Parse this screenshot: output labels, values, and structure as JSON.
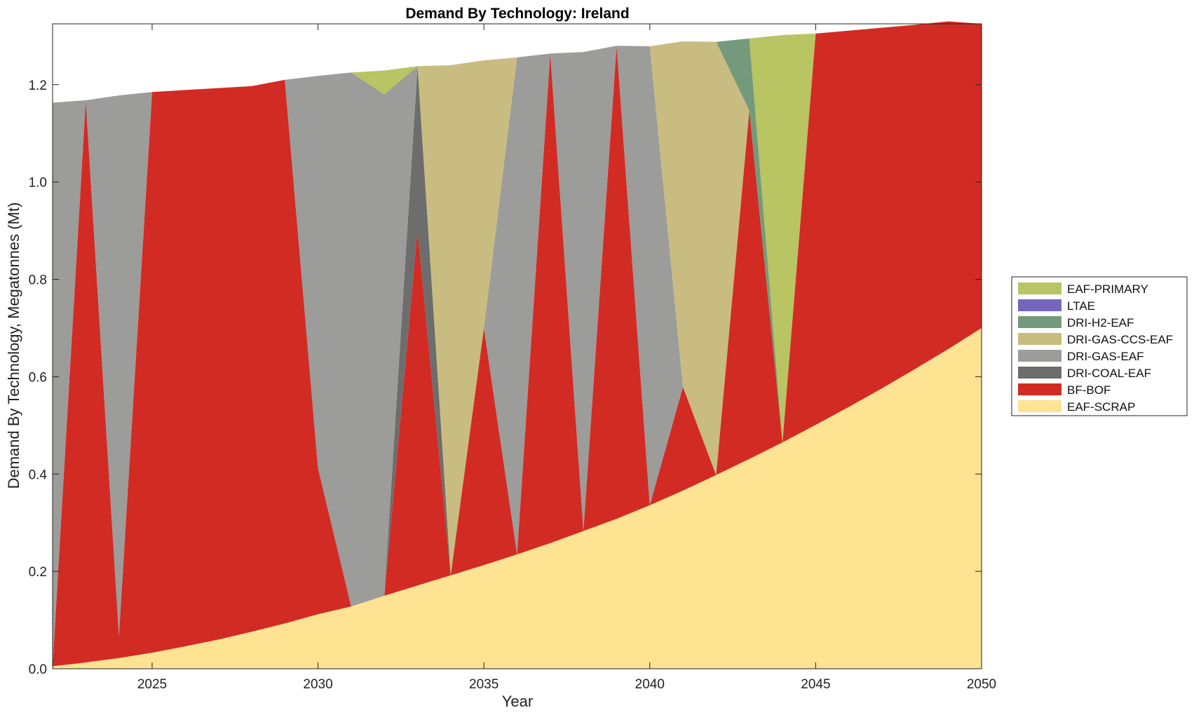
{
  "chart_data": {
    "type": "area",
    "stacked": true,
    "title": "Demand By Technology: Ireland",
    "xlabel": "Year",
    "ylabel": "Demand By Technology, Megatonnes (Mt)",
    "xlim": [
      2022,
      2050
    ],
    "ylim": [
      0,
      1.325
    ],
    "xticks": [
      2025,
      2030,
      2035,
      2040,
      2045,
      2050
    ],
    "yticks": [
      0.0,
      0.2,
      0.4,
      0.6,
      0.8,
      1.0,
      1.2
    ],
    "ytick_labels": [
      "0.0",
      "0.2",
      "0.4",
      "0.6",
      "0.8",
      "1.0",
      "1.2"
    ],
    "legend_position": "right",
    "x": [
      2022,
      2023,
      2024,
      2025,
      2026,
      2027,
      2028,
      2029,
      2030,
      2031,
      2032,
      2033,
      2034,
      2035,
      2036,
      2037,
      2038,
      2039,
      2040,
      2041,
      2042,
      2043,
      2044,
      2045,
      2046,
      2047,
      2048,
      2049,
      2050
    ],
    "series": [
      {
        "name": "EAF-SCRAP",
        "color": "#fde392",
        "values": [
          0.005,
          0.013,
          0.022,
          0.033,
          0.046,
          0.06,
          0.076,
          0.093,
          0.112,
          0.128,
          0.15,
          0.171,
          0.192,
          0.213,
          0.235,
          0.258,
          0.283,
          0.308,
          0.336,
          0.366,
          0.398,
          0.431,
          0.465,
          0.501,
          0.538,
          0.576,
          0.616,
          0.657,
          0.7
        ]
      },
      {
        "name": "BF-BOF",
        "color": "#d22b24",
        "values": [
          0.0,
          1.155,
          0.045,
          1.152,
          1.143,
          1.133,
          1.121,
          1.117,
          0.3,
          0.0,
          0.0,
          0.73,
          0.0,
          0.487,
          0.0,
          1.006,
          0.0,
          0.972,
          0.0,
          0.213,
          0.0,
          0.716,
          0.0,
          0.804,
          0.773,
          0.741,
          0.707,
          0.673,
          0.625
        ]
      },
      {
        "name": "DRI-COAL-EAF",
        "color": "#6d6d6d",
        "values": [
          0,
          0,
          0,
          0,
          0,
          0,
          0,
          0,
          0,
          0,
          0,
          0.337,
          0,
          0,
          0,
          0,
          0,
          0,
          0,
          0,
          0,
          0,
          0,
          0,
          0,
          0,
          0,
          0,
          0
        ]
      },
      {
        "name": "DRI-GAS-EAF",
        "color": "#9c9c9a",
        "values": [
          1.158,
          0.0,
          1.111,
          0.0,
          0.0,
          0.0,
          0.0,
          0.0,
          0.806,
          1.097,
          1.03,
          0.0,
          0.0,
          0.0,
          1.021,
          0.0,
          0.984,
          0.0,
          0.943,
          0.0,
          0.0,
          0.0,
          0.0,
          0.0,
          0.0,
          0.0,
          0.0,
          0.0,
          0.0
        ]
      },
      {
        "name": "DRI-GAS-CCS-EAF",
        "color": "#c8bc80",
        "values": [
          0,
          0,
          0,
          0,
          0,
          0,
          0,
          0,
          0,
          0,
          0,
          0,
          1.048,
          0.55,
          0,
          0,
          0,
          0,
          0,
          0.71,
          0.89,
          0,
          0,
          0,
          0,
          0,
          0,
          0,
          0
        ]
      },
      {
        "name": "DRI-H2-EAF",
        "color": "#759a7b",
        "values": [
          0,
          0,
          0,
          0,
          0,
          0,
          0,
          0,
          0,
          0,
          0,
          0,
          0,
          0,
          0,
          0,
          0,
          0,
          0,
          0,
          0,
          0.148,
          0,
          0,
          0,
          0,
          0,
          0,
          0
        ]
      },
      {
        "name": "LTAE",
        "color": "#7466bc",
        "values": [
          0,
          0,
          0,
          0,
          0,
          0,
          0,
          0,
          0,
          0,
          0,
          0,
          0,
          0,
          0,
          0,
          0,
          0,
          0,
          0,
          0,
          0,
          0,
          0,
          0,
          0,
          0,
          0,
          0
        ]
      },
      {
        "name": "EAF-PRIMARY",
        "color": "#b9c463",
        "values": [
          0,
          0,
          0,
          0,
          0,
          0,
          0,
          0,
          0,
          0,
          0.049,
          0,
          0,
          0,
          0,
          0,
          0,
          0,
          0,
          0,
          0,
          0,
          0.837,
          0,
          0,
          0,
          0,
          0,
          0
        ]
      }
    ],
    "legend_order": [
      "EAF-PRIMARY",
      "LTAE",
      "DRI-H2-EAF",
      "DRI-GAS-CCS-EAF",
      "DRI-GAS-EAF",
      "DRI-COAL-EAF",
      "BF-BOF",
      "EAF-SCRAP"
    ]
  }
}
